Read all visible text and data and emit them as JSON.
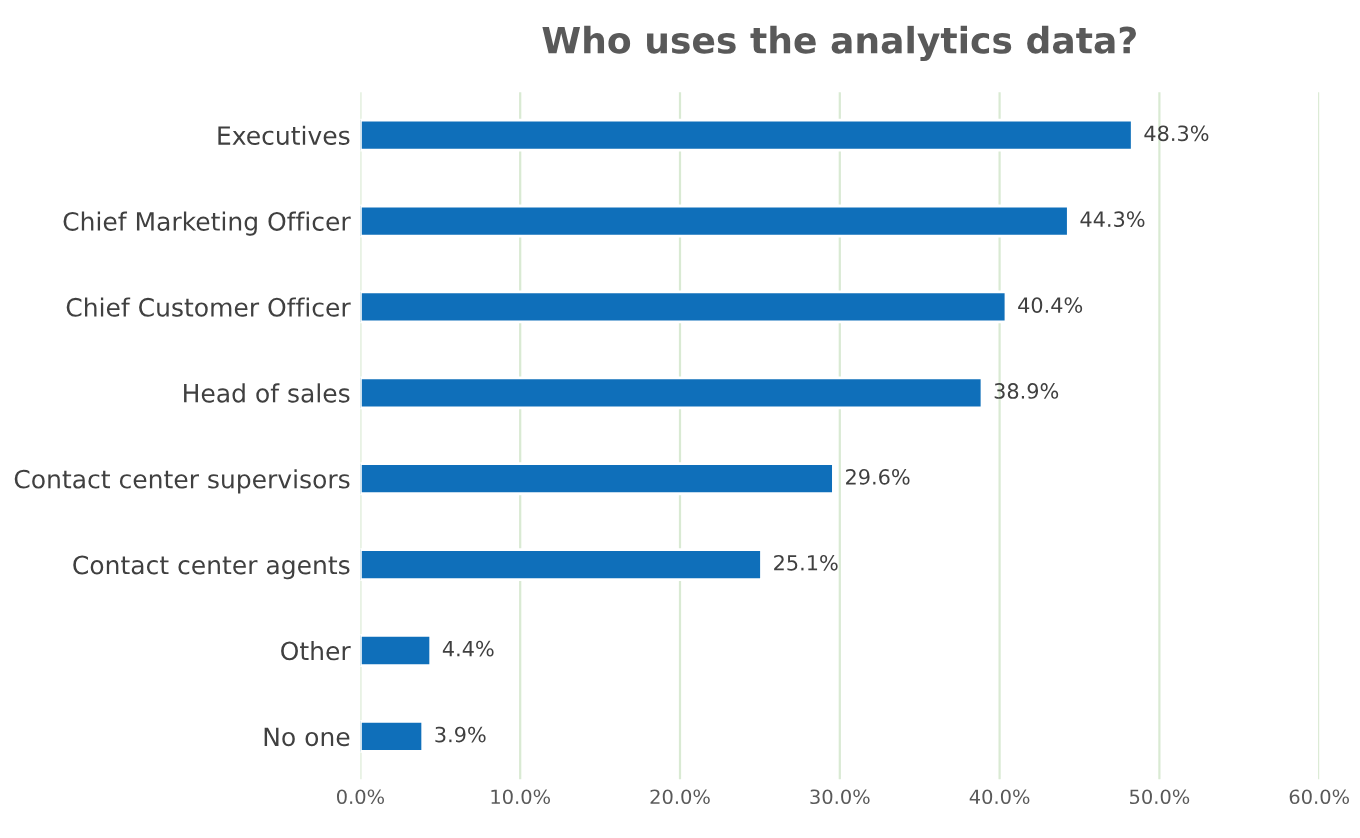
{
  "chart_data": {
    "type": "bar",
    "orientation": "horizontal",
    "title": "Who uses the analytics data?",
    "categories": [
      "Executives",
      "Chief Marketing Officer",
      "Chief Customer Officer",
      "Head of sales",
      "Contact center supervisors",
      "Contact center agents",
      "Other",
      "No one"
    ],
    "values": [
      48.3,
      44.3,
      40.4,
      38.9,
      29.6,
      25.1,
      4.4,
      3.9
    ],
    "value_labels": [
      "48.3%",
      "44.3%",
      "40.4%",
      "38.9%",
      "29.6%",
      "25.1%",
      "4.4%",
      "3.9%"
    ],
    "color": "#0f6fba",
    "xlim": [
      0,
      60
    ],
    "xticks": [
      {
        "value": 0,
        "label": "0.0%"
      },
      {
        "value": 10,
        "label": "10.0%"
      },
      {
        "value": 20,
        "label": "20.0%"
      },
      {
        "value": 30,
        "label": "30.0%"
      },
      {
        "value": 40,
        "label": "40.0%"
      },
      {
        "value": 50,
        "label": "50.0%"
      },
      {
        "value": 60,
        "label": "60.0%"
      }
    ],
    "grid": "x",
    "legend": false
  }
}
